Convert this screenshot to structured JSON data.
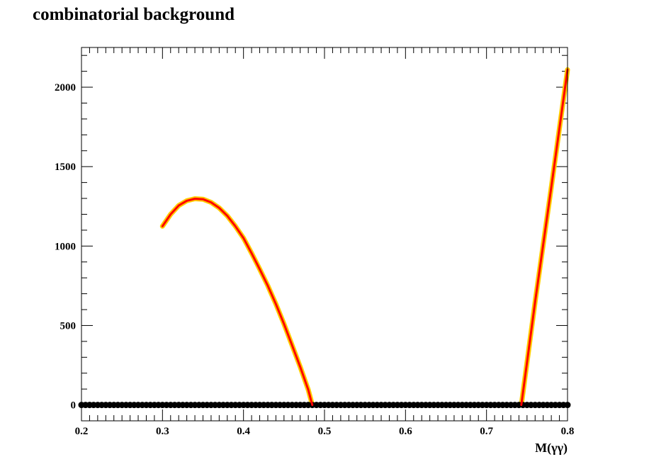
{
  "chart_data": {
    "type": "line",
    "title": "combinatorial background",
    "xlabel": "M(γγ)",
    "ylabel": "",
    "xlim": [
      0.2,
      0.8
    ],
    "ylim": [
      -100,
      2250
    ],
    "x_ticks": [
      0.2,
      0.3,
      0.4,
      0.5,
      0.6,
      0.7,
      0.8
    ],
    "x_tick_labels": [
      "0.2",
      "0.3",
      "0.4",
      "0.5",
      "0.6",
      "0.7",
      "0.8"
    ],
    "y_ticks": [
      0,
      500,
      1000,
      1500,
      2000
    ],
    "y_tick_labels": [
      "0",
      "500",
      "1000",
      "1500",
      "2000"
    ],
    "grid": false,
    "legend": "none",
    "colors": {
      "fit": "#ff0000",
      "band": "#ffcc00",
      "points": "#000000",
      "frame": "#000000"
    },
    "series": [
      {
        "kind": "fit-curve",
        "x": [
          0.3,
          0.31,
          0.32,
          0.33,
          0.34,
          0.35,
          0.36,
          0.37,
          0.38,
          0.39,
          0.4,
          0.41,
          0.42,
          0.43,
          0.44,
          0.45,
          0.46,
          0.47,
          0.48,
          0.485
        ],
        "y": [
          1125,
          1200,
          1255,
          1285,
          1298,
          1295,
          1275,
          1240,
          1190,
          1125,
          1050,
          955,
          855,
          750,
          635,
          510,
          375,
          240,
          95,
          0
        ]
      },
      {
        "kind": "fit-curve",
        "x": [
          0.743,
          0.76,
          0.78,
          0.8
        ],
        "y": [
          0,
          650,
          1370,
          2110
        ]
      },
      {
        "kind": "points",
        "x": [
          0.2,
          0.205,
          0.21,
          0.215,
          0.22,
          0.225,
          0.23,
          0.235,
          0.24,
          0.245,
          0.25,
          0.255,
          0.26,
          0.265,
          0.27,
          0.275,
          0.28,
          0.285,
          0.29,
          0.295,
          0.3,
          0.305,
          0.31,
          0.315,
          0.32,
          0.325,
          0.33,
          0.335,
          0.34,
          0.345,
          0.35,
          0.355,
          0.36,
          0.365,
          0.37,
          0.375,
          0.38,
          0.385,
          0.39,
          0.395,
          0.4,
          0.405,
          0.41,
          0.415,
          0.42,
          0.425,
          0.43,
          0.435,
          0.44,
          0.445,
          0.45,
          0.455,
          0.46,
          0.465,
          0.47,
          0.475,
          0.48,
          0.485,
          0.49,
          0.495,
          0.5,
          0.505,
          0.51,
          0.515,
          0.52,
          0.525,
          0.53,
          0.535,
          0.54,
          0.545,
          0.55,
          0.555,
          0.56,
          0.565,
          0.57,
          0.575,
          0.58,
          0.585,
          0.59,
          0.595,
          0.6,
          0.605,
          0.61,
          0.615,
          0.62,
          0.625,
          0.63,
          0.635,
          0.64,
          0.645,
          0.65,
          0.655,
          0.66,
          0.665,
          0.67,
          0.675,
          0.68,
          0.685,
          0.69,
          0.695,
          0.7,
          0.705,
          0.71,
          0.715,
          0.72,
          0.725,
          0.73,
          0.735,
          0.74,
          0.745,
          0.75,
          0.755,
          0.76,
          0.765,
          0.77,
          0.775,
          0.78,
          0.785,
          0.79,
          0.795,
          0.8
        ],
        "y": [
          0,
          0,
          0,
          0,
          0,
          0,
          0,
          0,
          0,
          0,
          0,
          0,
          0,
          0,
          0,
          0,
          0,
          0,
          0,
          0,
          0,
          0,
          0,
          0,
          0,
          0,
          0,
          0,
          0,
          0,
          0,
          0,
          0,
          0,
          0,
          0,
          0,
          0,
          0,
          0,
          0,
          0,
          0,
          0,
          0,
          0,
          0,
          0,
          0,
          0,
          0,
          0,
          0,
          0,
          0,
          0,
          0,
          0,
          0,
          0,
          0,
          0,
          0,
          0,
          0,
          0,
          0,
          0,
          0,
          0,
          0,
          0,
          0,
          0,
          0,
          0,
          0,
          0,
          0,
          0,
          0,
          0,
          0,
          0,
          0,
          0,
          0,
          0,
          0,
          0,
          0,
          0,
          0,
          0,
          0,
          0,
          0,
          0,
          0,
          0,
          0,
          0,
          0,
          0,
          0,
          0,
          0,
          0,
          0,
          0,
          0,
          0,
          0,
          0,
          0,
          0,
          0,
          0,
          0,
          0,
          0
        ]
      }
    ]
  }
}
